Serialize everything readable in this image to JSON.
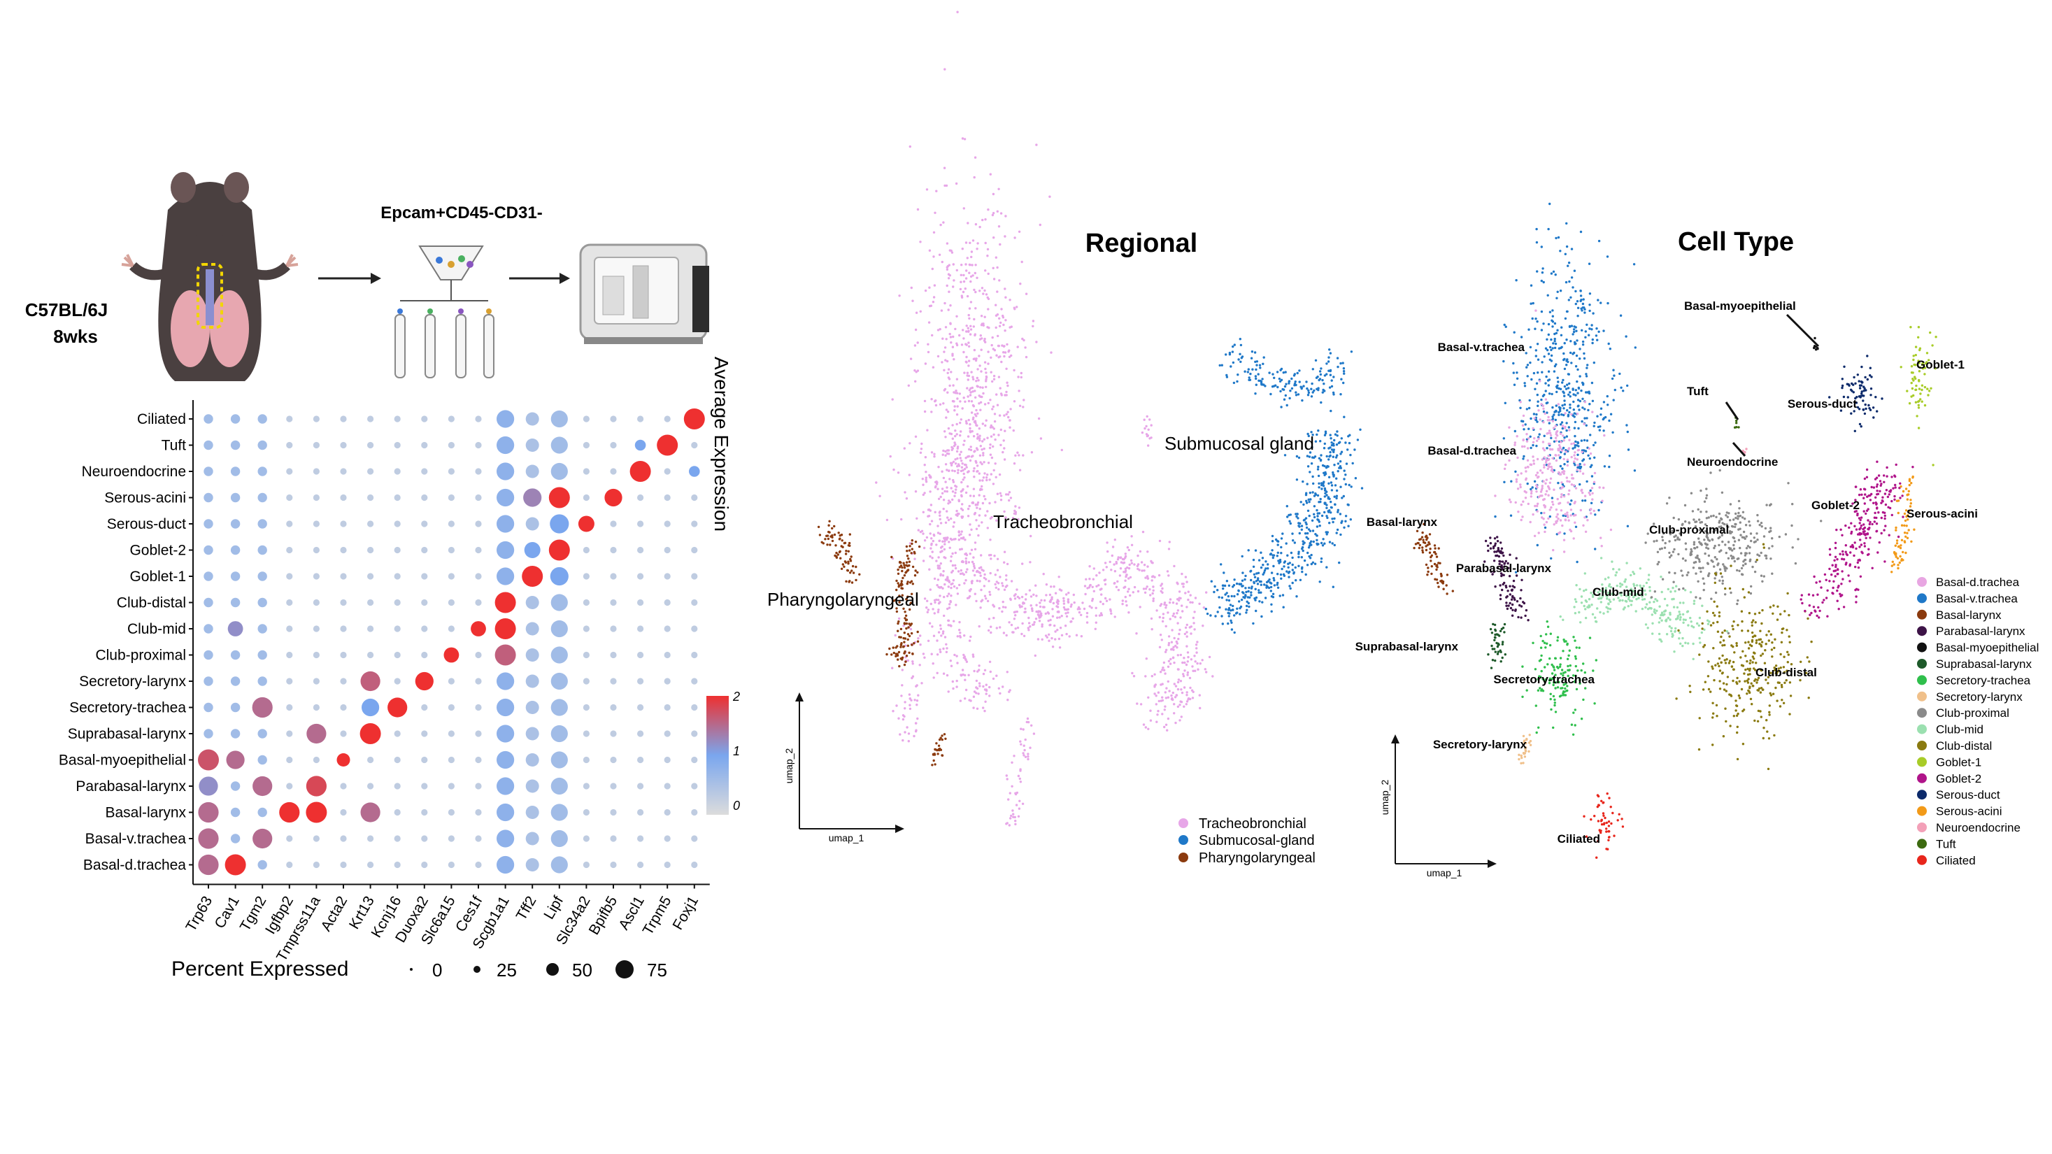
{
  "schematic": {
    "strain": "C57BL/6J",
    "age": "8wks",
    "sort_label": "Epcam+CD45-CD31-"
  },
  "palette": {
    "tracheobronchial": "#e7a6e8",
    "submucosal": "#1f78c8",
    "pharyngolaryngeal": "#8b3a0e",
    "dot_low": "#dcdcdc",
    "dot_mid": "#7aa6ee",
    "dot_high": "#ee3030"
  },
  "chart_data": [
    {
      "type": "dotplot",
      "cell_types": [
        "Ciliated",
        "Tuft",
        "Neuroendocrine",
        "Serous-acini",
        "Serous-duct",
        "Goblet-2",
        "Goblet-1",
        "Club-distal",
        "Club-mid",
        "Club-proximal",
        "Secretory-larynx",
        "Secretory-trachea",
        "Suprabasal-larynx",
        "Basal-myoepithelial",
        "Parabasal-larynx",
        "Basal-larynx",
        "Basal-v.trachea",
        "Basal-d.trachea"
      ],
      "genes": [
        "Trp63",
        "Cav1",
        "Tgm2",
        "Igfbp2",
        "Tmprss11a",
        "Acta2",
        "Krt13",
        "Kcnj16",
        "Duoxa2",
        "Slc6a15",
        "Ces1f",
        "Scgb1a1",
        "Tff2",
        "Lipf",
        "Slc34a2",
        "Bpifb5",
        "Ascl1",
        "Trpm5",
        "Foxj1"
      ],
      "color_legend": {
        "title": "Average Expression",
        "ticks": [
          2,
          1,
          0
        ],
        "range": [
          0,
          2
        ]
      },
      "size_legend": {
        "title": "Percent Expressed",
        "values": [
          0,
          25,
          50,
          75
        ]
      },
      "highlights": [
        {
          "cell": "Ciliated",
          "gene": "Foxj1",
          "pct": 75,
          "expr": 2.0
        },
        {
          "cell": "Tuft",
          "gene": "Trpm5",
          "pct": 75,
          "expr": 2.0
        },
        {
          "cell": "Tuft",
          "gene": "Ascl1",
          "pct": 15,
          "expr": 1.0
        },
        {
          "cell": "Neuroendocrine",
          "gene": "Ascl1",
          "pct": 75,
          "expr": 2.0
        },
        {
          "cell": "Neuroendocrine",
          "gene": "Foxj1",
          "pct": 15,
          "expr": 1.0
        },
        {
          "cell": "Serous-acini",
          "gene": "Bpifb5",
          "pct": 50,
          "expr": 2.0
        },
        {
          "cell": "Serous-acini",
          "gene": "Lipf",
          "pct": 75,
          "expr": 2.0
        },
        {
          "cell": "Serous-acini",
          "gene": "Tff2",
          "pct": 55,
          "expr": 1.3
        },
        {
          "cell": "Serous-duct",
          "gene": "Slc34a2",
          "pct": 40,
          "expr": 2.0
        },
        {
          "cell": "Serous-duct",
          "gene": "Lipf",
          "pct": 60,
          "expr": 1.0
        },
        {
          "cell": "Goblet-2",
          "gene": "Lipf",
          "pct": 75,
          "expr": 2.0
        },
        {
          "cell": "Goblet-2",
          "gene": "Tff2",
          "pct": 40,
          "expr": 1.0
        },
        {
          "cell": "Goblet-1",
          "gene": "Tff2",
          "pct": 75,
          "expr": 2.0
        },
        {
          "cell": "Goblet-1",
          "gene": "Lipf",
          "pct": 55,
          "expr": 1.0
        },
        {
          "cell": "Club-distal",
          "gene": "Scgb1a1",
          "pct": 75,
          "expr": 2.0
        },
        {
          "cell": "Club-mid",
          "gene": "Scgb1a1",
          "pct": 75,
          "expr": 2.0
        },
        {
          "cell": "Club-mid",
          "gene": "Ces1f",
          "pct": 35,
          "expr": 2.0
        },
        {
          "cell": "Club-mid",
          "gene": "Cav1",
          "pct": 35,
          "expr": 1.2
        },
        {
          "cell": "Club-proximal",
          "gene": "Scgb1a1",
          "pct": 75,
          "expr": 1.6
        },
        {
          "cell": "Club-proximal",
          "gene": "Slc6a15",
          "pct": 35,
          "expr": 2.0
        },
        {
          "cell": "Secretory-larynx",
          "gene": "Duoxa2",
          "pct": 55,
          "expr": 2.0
        },
        {
          "cell": "Secretory-larynx",
          "gene": "Krt13",
          "pct": 65,
          "expr": 1.6
        },
        {
          "cell": "Secretory-trachea",
          "gene": "Kcnj16",
          "pct": 65,
          "expr": 2.0
        },
        {
          "cell": "Secretory-trachea",
          "gene": "Krt13",
          "pct": 50,
          "expr": 1.0
        },
        {
          "cell": "Secretory-trachea",
          "gene": "Tgm2",
          "pct": 70,
          "expr": 1.5
        },
        {
          "cell": "Suprabasal-larynx",
          "gene": "Krt13",
          "pct": 75,
          "expr": 2.0
        },
        {
          "cell": "Suprabasal-larynx",
          "gene": "Tmprss11a",
          "pct": 65,
          "expr": 1.5
        },
        {
          "cell": "Basal-myoepithelial",
          "gene": "Trp63",
          "pct": 75,
          "expr": 1.7
        },
        {
          "cell": "Basal-myoepithelial",
          "gene": "Cav1",
          "pct": 55,
          "expr": 1.5
        },
        {
          "cell": "Basal-myoepithelial",
          "gene": "Acta2",
          "pct": 25,
          "expr": 2.0
        },
        {
          "cell": "Parabasal-larynx",
          "gene": "Tmprss11a",
          "pct": 70,
          "expr": 1.8
        },
        {
          "cell": "Parabasal-larynx",
          "gene": "Tgm2",
          "pct": 65,
          "expr": 1.5
        },
        {
          "cell": "Parabasal-larynx",
          "gene": "Trp63",
          "pct": 60,
          "expr": 1.2
        },
        {
          "cell": "Basal-larynx",
          "gene": "Tmprss11a",
          "pct": 75,
          "expr": 2.0
        },
        {
          "cell": "Basal-larynx",
          "gene": "Igfbp2",
          "pct": 70,
          "expr": 2.0
        },
        {
          "cell": "Basal-larynx",
          "gene": "Krt13",
          "pct": 65,
          "expr": 1.5
        },
        {
          "cell": "Basal-larynx",
          "gene": "Trp63",
          "pct": 70,
          "expr": 1.5
        },
        {
          "cell": "Basal-v.trachea",
          "gene": "Trp63",
          "pct": 70,
          "expr": 1.5
        },
        {
          "cell": "Basal-v.trachea",
          "gene": "Tgm2",
          "pct": 65,
          "expr": 1.5
        },
        {
          "cell": "Basal-d.trachea",
          "gene": "Cav1",
          "pct": 75,
          "expr": 2.0
        },
        {
          "cell": "Basal-d.trachea",
          "gene": "Trp63",
          "pct": 70,
          "expr": 1.5
        }
      ]
    },
    {
      "type": "scatter",
      "title": "Regional",
      "xlabel": "umap_1",
      "ylabel": "umap_2",
      "legend": [
        "Tracheobronchial",
        "Submucosal-gland",
        "Pharyngolaryngeal"
      ],
      "cluster_labels": [
        "Tracheobronchial",
        "Submucosal gland",
        "Pharyngolaryngeal"
      ]
    },
    {
      "type": "scatter",
      "title": "Cell Type",
      "xlabel": "umap_1",
      "ylabel": "umap_2",
      "series": [
        {
          "name": "Basal-d.trachea",
          "color": "#e8a6e2"
        },
        {
          "name": "Basal-v.trachea",
          "color": "#1f78c8"
        },
        {
          "name": "Basal-larynx",
          "color": "#8b3a0e"
        },
        {
          "name": "Parabasal-larynx",
          "color": "#3d1347"
        },
        {
          "name": "Basal-myoepithelial",
          "color": "#111111"
        },
        {
          "name": "Suprabasal-larynx",
          "color": "#1e5a2a"
        },
        {
          "name": "Secretory-trachea",
          "color": "#2fbf4c"
        },
        {
          "name": "Secretory-larynx",
          "color": "#f0c08a"
        },
        {
          "name": "Club-proximal",
          "color": "#8a8a8a"
        },
        {
          "name": "Club-mid",
          "color": "#9be0b0"
        },
        {
          "name": "Club-distal",
          "color": "#8a7a10"
        },
        {
          "name": "Goblet-1",
          "color": "#a8cc28"
        },
        {
          "name": "Goblet-2",
          "color": "#b0148a"
        },
        {
          "name": "Serous-duct",
          "color": "#0c2a6a"
        },
        {
          "name": "Serous-acini",
          "color": "#f29a18"
        },
        {
          "name": "Neuroendocrine",
          "color": "#f3a0b8"
        },
        {
          "name": "Tuft",
          "color": "#3c6a10"
        },
        {
          "name": "Ciliated",
          "color": "#e8261c"
        }
      ],
      "cluster_labels": [
        "Basal-myoepithelial",
        "Goblet-1",
        "Basal-v.trachea",
        "Tuft",
        "Serous-duct",
        "Basal-d.trachea",
        "Neuroendocrine",
        "Goblet-2",
        "Serous-acini",
        "Basal-larynx",
        "Club-proximal",
        "Parabasal-larynx",
        "Club-mid",
        "Suprabasal-larynx",
        "Club-distal",
        "Secretory-trachea",
        "Secretory-larynx",
        "Ciliated"
      ]
    }
  ]
}
